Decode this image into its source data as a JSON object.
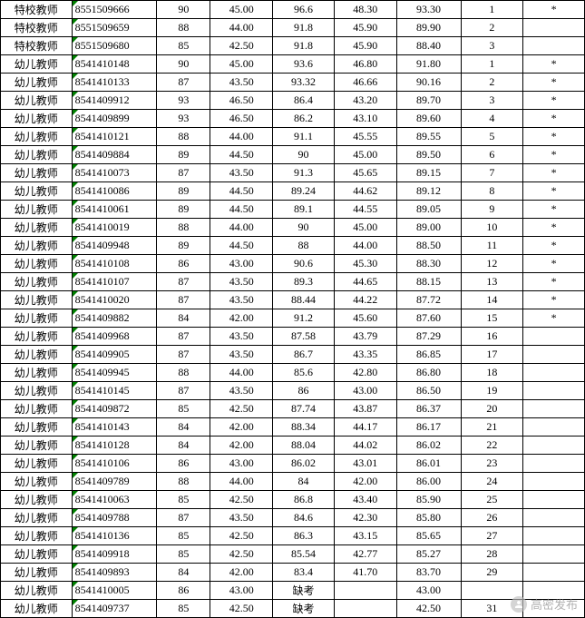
{
  "watermark_text": "高密发布",
  "rows": [
    {
      "c0": "特校教师",
      "c1": "8551509666",
      "c2": "90",
      "c3": "45.00",
      "c4": "96.6",
      "c5": "48.30",
      "c6": "93.30",
      "c7": "1",
      "c8": "*"
    },
    {
      "c0": "特校教师",
      "c1": "8551509659",
      "c2": "88",
      "c3": "44.00",
      "c4": "91.8",
      "c5": "45.90",
      "c6": "89.90",
      "c7": "2",
      "c8": ""
    },
    {
      "c0": "特校教师",
      "c1": "8551509680",
      "c2": "85",
      "c3": "42.50",
      "c4": "91.8",
      "c5": "45.90",
      "c6": "88.40",
      "c7": "3",
      "c8": ""
    },
    {
      "c0": "幼儿教师",
      "c1": "8541410148",
      "c2": "90",
      "c3": "45.00",
      "c4": "93.6",
      "c5": "46.80",
      "c6": "91.80",
      "c7": "1",
      "c8": "*"
    },
    {
      "c0": "幼儿教师",
      "c1": "8541410133",
      "c2": "87",
      "c3": "43.50",
      "c4": "93.32",
      "c5": "46.66",
      "c6": "90.16",
      "c7": "2",
      "c8": "*"
    },
    {
      "c0": "幼儿教师",
      "c1": "8541409912",
      "c2": "93",
      "c3": "46.50",
      "c4": "86.4",
      "c5": "43.20",
      "c6": "89.70",
      "c7": "3",
      "c8": "*"
    },
    {
      "c0": "幼儿教师",
      "c1": "8541409899",
      "c2": "93",
      "c3": "46.50",
      "c4": "86.2",
      "c5": "43.10",
      "c6": "89.60",
      "c7": "4",
      "c8": "*"
    },
    {
      "c0": "幼儿教师",
      "c1": "8541410121",
      "c2": "88",
      "c3": "44.00",
      "c4": "91.1",
      "c5": "45.55",
      "c6": "89.55",
      "c7": "5",
      "c8": "*"
    },
    {
      "c0": "幼儿教师",
      "c1": "8541409884",
      "c2": "89",
      "c3": "44.50",
      "c4": "90",
      "c5": "45.00",
      "c6": "89.50",
      "c7": "6",
      "c8": "*"
    },
    {
      "c0": "幼儿教师",
      "c1": "8541410073",
      "c2": "87",
      "c3": "43.50",
      "c4": "91.3",
      "c5": "45.65",
      "c6": "89.15",
      "c7": "7",
      "c8": "*"
    },
    {
      "c0": "幼儿教师",
      "c1": "8541410086",
      "c2": "89",
      "c3": "44.50",
      "c4": "89.24",
      "c5": "44.62",
      "c6": "89.12",
      "c7": "8",
      "c8": "*"
    },
    {
      "c0": "幼儿教师",
      "c1": "8541410061",
      "c2": "89",
      "c3": "44.50",
      "c4": "89.1",
      "c5": "44.55",
      "c6": "89.05",
      "c7": "9",
      "c8": "*"
    },
    {
      "c0": "幼儿教师",
      "c1": "8541410019",
      "c2": "88",
      "c3": "44.00",
      "c4": "90",
      "c5": "45.00",
      "c6": "89.00",
      "c7": "10",
      "c8": "*"
    },
    {
      "c0": "幼儿教师",
      "c1": "8541409948",
      "c2": "89",
      "c3": "44.50",
      "c4": "88",
      "c5": "44.00",
      "c6": "88.50",
      "c7": "11",
      "c8": "*"
    },
    {
      "c0": "幼儿教师",
      "c1": "8541410108",
      "c2": "86",
      "c3": "43.00",
      "c4": "90.6",
      "c5": "45.30",
      "c6": "88.30",
      "c7": "12",
      "c8": "*"
    },
    {
      "c0": "幼儿教师",
      "c1": "8541410107",
      "c2": "87",
      "c3": "43.50",
      "c4": "89.3",
      "c5": "44.65",
      "c6": "88.15",
      "c7": "13",
      "c8": "*"
    },
    {
      "c0": "幼儿教师",
      "c1": "8541410020",
      "c2": "87",
      "c3": "43.50",
      "c4": "88.44",
      "c5": "44.22",
      "c6": "87.72",
      "c7": "14",
      "c8": "*"
    },
    {
      "c0": "幼儿教师",
      "c1": "8541409882",
      "c2": "84",
      "c3": "42.00",
      "c4": "91.2",
      "c5": "45.60",
      "c6": "87.60",
      "c7": "15",
      "c8": "*"
    },
    {
      "c0": "幼儿教师",
      "c1": "8541409968",
      "c2": "87",
      "c3": "43.50",
      "c4": "87.58",
      "c5": "43.79",
      "c6": "87.29",
      "c7": "16",
      "c8": ""
    },
    {
      "c0": "幼儿教师",
      "c1": "8541409905",
      "c2": "87",
      "c3": "43.50",
      "c4": "86.7",
      "c5": "43.35",
      "c6": "86.85",
      "c7": "17",
      "c8": ""
    },
    {
      "c0": "幼儿教师",
      "c1": "8541409945",
      "c2": "88",
      "c3": "44.00",
      "c4": "85.6",
      "c5": "42.80",
      "c6": "86.80",
      "c7": "18",
      "c8": ""
    },
    {
      "c0": "幼儿教师",
      "c1": "8541410145",
      "c2": "87",
      "c3": "43.50",
      "c4": "86",
      "c5": "43.00",
      "c6": "86.50",
      "c7": "19",
      "c8": ""
    },
    {
      "c0": "幼儿教师",
      "c1": "8541409872",
      "c2": "85",
      "c3": "42.50",
      "c4": "87.74",
      "c5": "43.87",
      "c6": "86.37",
      "c7": "20",
      "c8": ""
    },
    {
      "c0": "幼儿教师",
      "c1": "8541410143",
      "c2": "84",
      "c3": "42.00",
      "c4": "88.34",
      "c5": "44.17",
      "c6": "86.17",
      "c7": "21",
      "c8": ""
    },
    {
      "c0": "幼儿教师",
      "c1": "8541410128",
      "c2": "84",
      "c3": "42.00",
      "c4": "88.04",
      "c5": "44.02",
      "c6": "86.02",
      "c7": "22",
      "c8": ""
    },
    {
      "c0": "幼儿教师",
      "c1": "8541410106",
      "c2": "86",
      "c3": "43.00",
      "c4": "86.02",
      "c5": "43.01",
      "c6": "86.01",
      "c7": "23",
      "c8": ""
    },
    {
      "c0": "幼儿教师",
      "c1": "8541409789",
      "c2": "88",
      "c3": "44.00",
      "c4": "84",
      "c5": "42.00",
      "c6": "86.00",
      "c7": "24",
      "c8": ""
    },
    {
      "c0": "幼儿教师",
      "c1": "8541410063",
      "c2": "85",
      "c3": "42.50",
      "c4": "86.8",
      "c5": "43.40",
      "c6": "85.90",
      "c7": "25",
      "c8": ""
    },
    {
      "c0": "幼儿教师",
      "c1": "8541409788",
      "c2": "87",
      "c3": "43.50",
      "c4": "84.6",
      "c5": "42.30",
      "c6": "85.80",
      "c7": "26",
      "c8": ""
    },
    {
      "c0": "幼儿教师",
      "c1": "8541410136",
      "c2": "85",
      "c3": "42.50",
      "c4": "86.3",
      "c5": "43.15",
      "c6": "85.65",
      "c7": "27",
      "c8": ""
    },
    {
      "c0": "幼儿教师",
      "c1": "8541409918",
      "c2": "85",
      "c3": "42.50",
      "c4": "85.54",
      "c5": "42.77",
      "c6": "85.27",
      "c7": "28",
      "c8": ""
    },
    {
      "c0": "幼儿教师",
      "c1": "8541409893",
      "c2": "84",
      "c3": "42.00",
      "c4": "83.4",
      "c5": "41.70",
      "c6": "83.70",
      "c7": "29",
      "c8": ""
    },
    {
      "c0": "幼儿教师",
      "c1": "8541410005",
      "c2": "86",
      "c3": "43.00",
      "c4": "缺考",
      "c5": "",
      "c6": "43.00",
      "c7": "",
      "c8": ""
    },
    {
      "c0": "幼儿教师",
      "c1": "8541409737",
      "c2": "85",
      "c3": "42.50",
      "c4": "缺考",
      "c5": "",
      "c6": "42.50",
      "c7": "31",
      "c8": ""
    }
  ]
}
